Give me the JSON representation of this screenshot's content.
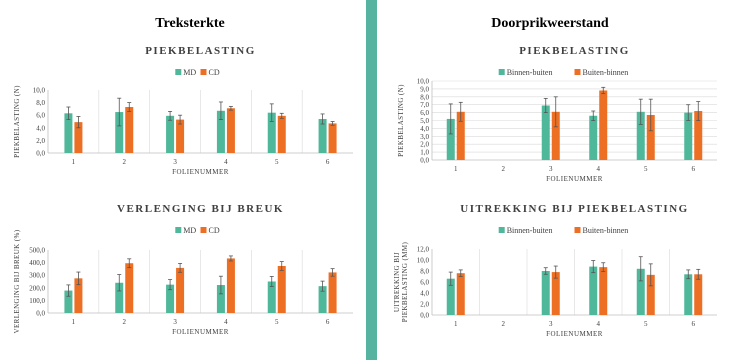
{
  "colors": {
    "background": "#ffffff",
    "divider": "#56b3a0",
    "series_1": "#4fb79a",
    "series_2": "#ec6f24",
    "grid": "#d9d9d9",
    "axis": "#bfbfbf",
    "text": "#000000",
    "tick_text": "#404040"
  },
  "sections": {
    "left_title": "Treksterkte",
    "right_title": "Doorprikweerstand"
  },
  "chart_data": [
    {
      "type": "bar",
      "title": "PIEKBELASTING",
      "xlabel": "FOLIENUMMER",
      "ylabel": "PIEKBELASTING (N)",
      "ylim": [
        0,
        10
      ],
      "ytick_values": [
        0,
        2,
        4,
        6,
        8,
        10
      ],
      "ytick_labels": [
        "0,0",
        "2,0",
        "4,0",
        "6,0",
        "8,0",
        "10,0"
      ],
      "categories": [
        "1",
        "2",
        "3",
        "4",
        "5",
        "6"
      ],
      "grid": "vertical lines between categories",
      "legend": "top-center",
      "series": [
        {
          "name": "MD",
          "values": [
            6.3,
            6.5,
            5.9,
            6.7,
            6.4,
            5.4
          ],
          "errors": [
            1.0,
            2.2,
            0.7,
            1.4,
            1.4,
            0.8
          ]
        },
        {
          "name": "CD",
          "values": [
            4.9,
            7.3,
            5.3,
            7.1,
            5.9,
            4.7
          ],
          "errors": [
            0.9,
            0.7,
            0.7,
            0.3,
            0.4,
            0.3
          ]
        }
      ]
    },
    {
      "type": "bar",
      "title": "VERLENGING BIJ BREUK",
      "xlabel": "FOLIENUMMER",
      "ylabel": "VERLENGING BIJ BREUK (%)",
      "ylim": [
        0,
        500
      ],
      "ytick_values": [
        0,
        100,
        200,
        300,
        400,
        500
      ],
      "ytick_labels": [
        "0,0",
        "100,0",
        "200,0",
        "300,0",
        "400,0",
        "500,0"
      ],
      "categories": [
        "1",
        "2",
        "3",
        "4",
        "5",
        "6"
      ],
      "grid": "vertical lines between categories",
      "legend": "top-center",
      "series": [
        {
          "name": "MD",
          "values": [
            178,
            240,
            225,
            222,
            250,
            213
          ],
          "errors": [
            45,
            65,
            40,
            70,
            40,
            40
          ]
        },
        {
          "name": "CD",
          "values": [
            275,
            395,
            358,
            433,
            373,
            322
          ],
          "errors": [
            50,
            35,
            35,
            20,
            35,
            30
          ]
        }
      ]
    },
    {
      "type": "bar",
      "title": "PIEKBELASTING",
      "xlabel": "FOLIENUMMER",
      "ylabel": "PIEKBELASTING (N)",
      "ylim": [
        0,
        10
      ],
      "ytick_values": [
        0,
        1,
        2,
        3,
        4,
        5,
        6,
        7,
        8,
        9,
        10
      ],
      "ytick_labels": [
        "0,0",
        "1,0",
        "2,0",
        "3,0",
        "4,0",
        "5,0",
        "6,0",
        "7,0",
        "8,0",
        "9,0",
        "10,0"
      ],
      "categories": [
        "1",
        "2",
        "3",
        "4",
        "5",
        "6"
      ],
      "grid": "horizontal gridlines",
      "legend": "top-center",
      "series": [
        {
          "name": "Binnen-buiten",
          "values": [
            5.2,
            null,
            6.9,
            5.6,
            6.1,
            6.0
          ],
          "errors": [
            1.9,
            null,
            0.9,
            0.6,
            1.6,
            1.0
          ]
        },
        {
          "name": "Buiten-binnen",
          "values": [
            6.1,
            null,
            6.1,
            8.8,
            5.7,
            6.2
          ],
          "errors": [
            1.2,
            null,
            1.9,
            0.4,
            2.0,
            1.2
          ]
        }
      ]
    },
    {
      "type": "bar",
      "title": "UITREKKING BIJ PIEKBELASTING",
      "xlabel": "FOLIENUMMER",
      "ylabel": "UITREKKING BIJ PIEKBELASTING (MM)",
      "ylim": [
        0,
        12
      ],
      "ytick_values": [
        0,
        2,
        4,
        6,
        8,
        10,
        12
      ],
      "ytick_labels": [
        "0,0",
        "2,0",
        "4,0",
        "6,0",
        "8,0",
        "10,0",
        "12,0"
      ],
      "categories": [
        "1",
        "2",
        "3",
        "4",
        "5",
        "6"
      ],
      "grid": "vertical lines between categories",
      "legend": "top-center",
      "series": [
        {
          "name": "Binnen-buiten",
          "values": [
            6.6,
            null,
            8.0,
            8.8,
            8.4,
            7.4
          ],
          "errors": [
            1.2,
            null,
            0.6,
            1.1,
            2.2,
            0.8
          ]
        },
        {
          "name": "Buiten-binnen",
          "values": [
            7.6,
            null,
            7.8,
            8.7,
            7.3,
            7.4
          ],
          "errors": [
            0.6,
            null,
            1.1,
            0.8,
            2.0,
            0.9
          ]
        }
      ]
    }
  ]
}
